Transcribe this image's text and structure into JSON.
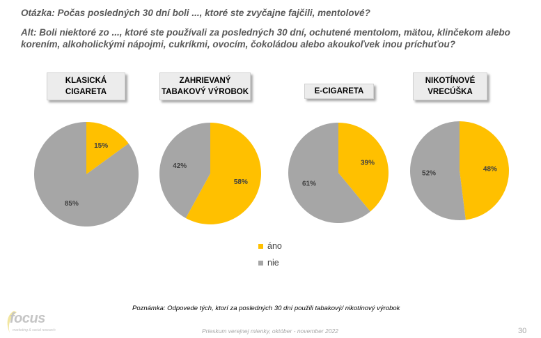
{
  "question": {
    "line1": "Otázka: Počas posledných 30 dní boli ..., ktoré ste zvyčajne fajčili, mentolové?",
    "line2": "Alt: Boli niektoré zo ..., ktoré ste používali za posledných 30 dní, ochutené mentolom, mätou, klinčekom alebo korením, alkoholickými nápojmi, cukríkmi, ovocím, čokoládou alebo akoukoľvek inou príchuťou?"
  },
  "chart_data": [
    {
      "type": "pie",
      "title": "KLASICKÁ\nCIGARETA",
      "slices": [
        {
          "label": "áno",
          "value": 15,
          "display": "15%"
        },
        {
          "label": "nie",
          "value": 85,
          "display": "85%"
        }
      ]
    },
    {
      "type": "pie",
      "title": "ZAHRIEVANÝ\nTABAKOVÝ VÝROBOK",
      "slices": [
        {
          "label": "áno",
          "value": 58,
          "display": "58%"
        },
        {
          "label": "nie",
          "value": 42,
          "display": "42%"
        }
      ]
    },
    {
      "type": "pie",
      "title": "E-CIGARETA",
      "slices": [
        {
          "label": "áno",
          "value": 39,
          "display": "39%"
        },
        {
          "label": "nie",
          "value": 61,
          "display": "61%"
        }
      ]
    },
    {
      "type": "pie",
      "title": "NIKOTÍNOVÉ\nVRECÚŠKA",
      "slices": [
        {
          "label": "áno",
          "value": 48,
          "display": "48%"
        },
        {
          "label": "nie",
          "value": 52,
          "display": "52%"
        }
      ]
    }
  ],
  "legend": [
    {
      "label": "áno",
      "color": "#FFC000"
    },
    {
      "label": "nie",
      "color": "#A6A6A6"
    }
  ],
  "note": "Poznámka: Odpovede tých, ktorí za posledných 30 dní použili tabakový/ nikotínový výrobok",
  "footer": "Prieskum verejnej mienky, október - november 2022",
  "page_number": "30",
  "logo": {
    "word": "focus",
    "tagline": "marketing & social research"
  }
}
